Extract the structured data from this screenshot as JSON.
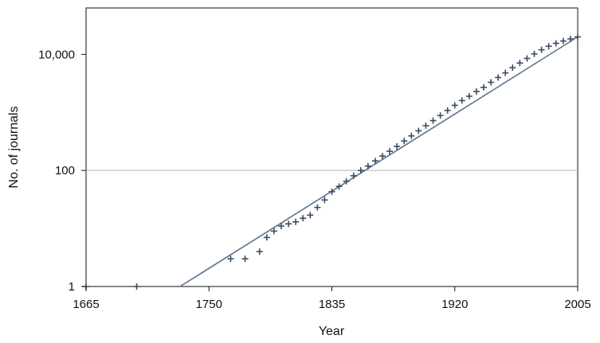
{
  "chart_data": {
    "type": "scatter",
    "title": "",
    "xlabel": "Year",
    "ylabel": "No. of journals",
    "xlim": [
      1665,
      2005
    ],
    "ylim_log10": [
      0,
      4.8
    ],
    "log_scale_y": true,
    "x_ticks": [
      {
        "value": 1665,
        "label": "1665"
      },
      {
        "value": 1750,
        "label": "1750"
      },
      {
        "value": 1835,
        "label": "1835"
      },
      {
        "value": 1920,
        "label": "1920"
      },
      {
        "value": 2005,
        "label": "2005"
      }
    ],
    "y_ticks": [
      {
        "value": 1,
        "label": "1"
      },
      {
        "value": 100,
        "label": "100"
      },
      {
        "value": 10000,
        "label": "10,000"
      }
    ],
    "gridlines_y": [
      100
    ],
    "series": [
      {
        "marker": "plus",
        "x": [
          1665,
          1700,
          1765,
          1775,
          1785,
          1790,
          1795,
          1800,
          1805,
          1810,
          1815,
          1820,
          1825,
          1830,
          1835,
          1840,
          1845,
          1850,
          1855,
          1860,
          1865,
          1870,
          1875,
          1880,
          1885,
          1890,
          1895,
          1900,
          1905,
          1910,
          1915,
          1920,
          1925,
          1930,
          1935,
          1940,
          1945,
          1950,
          1955,
          1960,
          1965,
          1970,
          1975,
          1980,
          1985,
          1990,
          1995,
          2000,
          2005
        ],
        "y": [
          1,
          1,
          3,
          3,
          4,
          7,
          9,
          11,
          12,
          13,
          15,
          17,
          23,
          31,
          43,
          53,
          65,
          81,
          100,
          119,
          146,
          177,
          214,
          260,
          322,
          394,
          482,
          590,
          722,
          884,
          1082,
          1324,
          1600,
          1900,
          2300,
          2700,
          3300,
          4000,
          4800,
          5900,
          7100,
          8500,
          10200,
          12000,
          13800,
          15500,
          17000,
          18500,
          20000
        ]
      }
    ],
    "fit_line": {
      "x": [
        1730,
        2005
      ],
      "y": [
        1,
        20000
      ]
    },
    "colors": {
      "marker": "#3d4c63",
      "fit_line": "#5b7691",
      "axis": "#111111",
      "grid": "#b5b5b5"
    }
  }
}
